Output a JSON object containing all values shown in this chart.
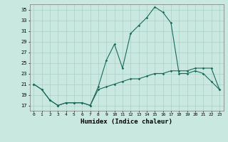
{
  "title": "",
  "xlabel": "Humidex (Indice chaleur)",
  "x": [
    0,
    1,
    2,
    3,
    4,
    5,
    6,
    7,
    8,
    9,
    10,
    11,
    12,
    13,
    14,
    15,
    16,
    17,
    18,
    19,
    20,
    21,
    22,
    23
  ],
  "line_main": [
    21,
    20,
    18,
    17,
    17.5,
    17.5,
    17.5,
    17,
    20.5,
    25.5,
    28.5,
    24,
    30.5,
    32,
    33.5,
    35.5,
    34.5,
    32.5,
    23,
    23,
    23.5,
    23,
    21.5,
    20
  ],
  "line_low": [
    21,
    20,
    18,
    17,
    17.5,
    17.5,
    17.5,
    17,
    20,
    20.5,
    21,
    21.5,
    22,
    22,
    22.5,
    23,
    23,
    23.5,
    23.5,
    23.5,
    24,
    24,
    24,
    20
  ],
  "color": "#1a6b5a",
  "bg_color": "#c8e8e0",
  "grid_color": "#aacfc8",
  "ylim": [
    16,
    36
  ],
  "yticks": [
    17,
    19,
    21,
    23,
    25,
    27,
    29,
    31,
    33,
    35
  ],
  "xlim": [
    -0.5,
    23.5
  ],
  "xticks": [
    0,
    1,
    2,
    3,
    4,
    5,
    6,
    7,
    8,
    9,
    10,
    11,
    12,
    13,
    14,
    15,
    16,
    17,
    18,
    19,
    20,
    21,
    22,
    23
  ]
}
